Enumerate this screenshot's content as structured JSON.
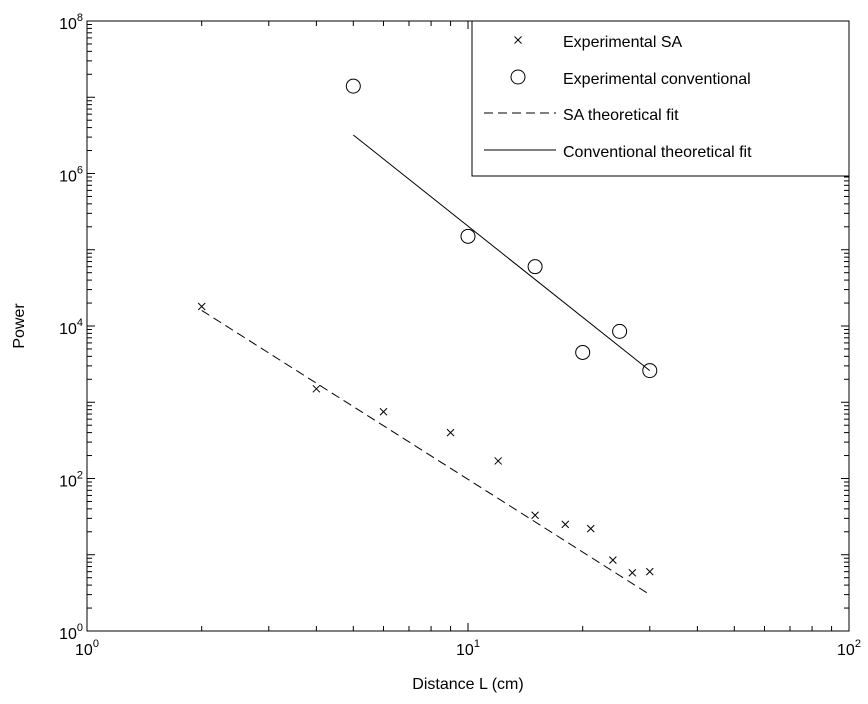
{
  "chart_data": {
    "type": "scatter",
    "xscale": "log",
    "yscale": "log",
    "xlabel": "Distance L (cm)",
    "ylabel": "Power",
    "xlim": [
      1,
      100
    ],
    "ylim": [
      1,
      100000000
    ],
    "x_ticks": [
      {
        "base": "10",
        "exp": "0",
        "value": 1
      },
      {
        "base": "10",
        "exp": "1",
        "value": 10
      },
      {
        "base": "10",
        "exp": "2",
        "value": 100
      }
    ],
    "y_ticks": [
      {
        "base": "10",
        "exp": "0",
        "value": 1
      },
      {
        "base": "10",
        "exp": "2",
        "value": 100
      },
      {
        "base": "10",
        "exp": "4",
        "value": 10000
      },
      {
        "base": "10",
        "exp": "6",
        "value": 1000000
      },
      {
        "base": "10",
        "exp": "8",
        "value": 100000000
      }
    ],
    "grid": false,
    "legend_position": "top-right",
    "series": [
      {
        "name": "Experimental SA",
        "style": "marker-x",
        "color": "#000000",
        "x": [
          2,
          4,
          6,
          9,
          12,
          15,
          18,
          21,
          24,
          27,
          30
        ],
        "y": [
          18000,
          1500,
          750,
          400,
          170,
          33,
          25,
          22,
          8.5,
          5.8,
          6
        ]
      },
      {
        "name": "Experimental conventional",
        "style": "marker-circle",
        "color": "#000000",
        "x": [
          5,
          10,
          15,
          20,
          25,
          30
        ],
        "y": [
          14000000,
          150000,
          60000,
          4500,
          8500,
          2600
        ]
      },
      {
        "name": "SA theoretical fit",
        "style": "dashed",
        "color": "#000000",
        "x": [
          2,
          30
        ],
        "y": [
          16000,
          3
        ]
      },
      {
        "name": "Conventional theoretical fit",
        "style": "solid",
        "color": "#000000",
        "x": [
          5,
          30
        ],
        "y": [
          3200000,
          2600
        ]
      }
    ]
  }
}
